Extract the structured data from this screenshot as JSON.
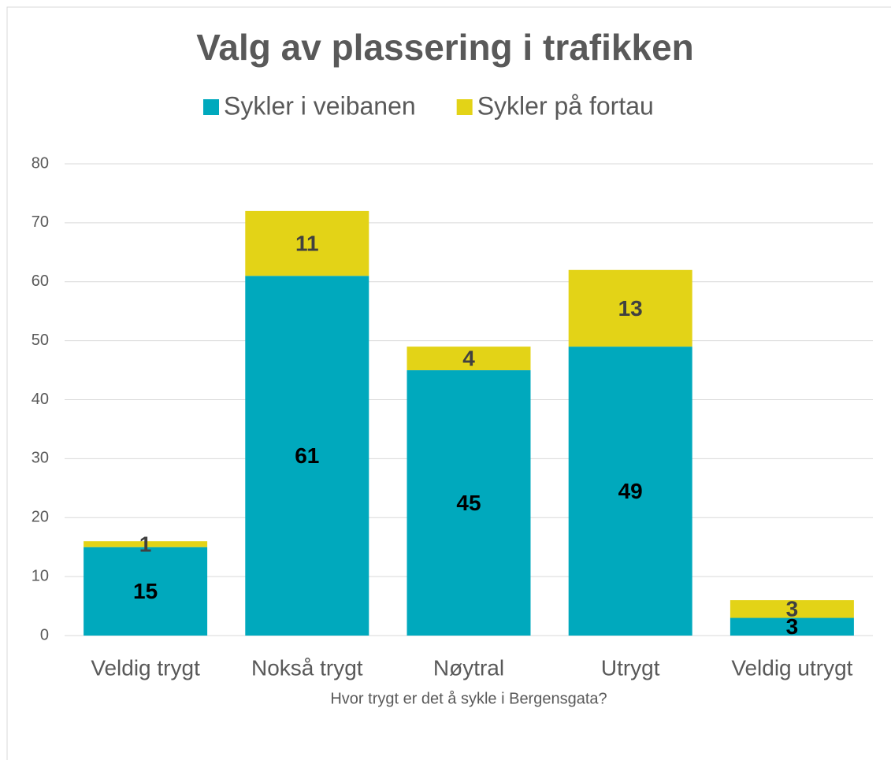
{
  "chart_data": {
    "type": "bar",
    "stacked": true,
    "title": "Valg av plassering i trafikken",
    "x_label": "Hvor trygt er det å sykle i Bergensgata?",
    "categories": [
      "Veldig trygt",
      "Nokså trygt",
      "Nøytral",
      "Utrygt",
      "Veldig utrygt"
    ],
    "series": [
      {
        "name": "Sykler i veibanen",
        "color": "#00a9bd",
        "values": [
          15,
          61,
          45,
          49,
          3
        ]
      },
      {
        "name": "Sykler på fortau",
        "color": "#e3d317",
        "values": [
          1,
          11,
          4,
          13,
          3
        ]
      }
    ],
    "ylim": [
      0,
      80
    ],
    "yticks": [
      0,
      10,
      20,
      30,
      40,
      50,
      60,
      70,
      80
    ],
    "grid": true,
    "legend": "top"
  }
}
